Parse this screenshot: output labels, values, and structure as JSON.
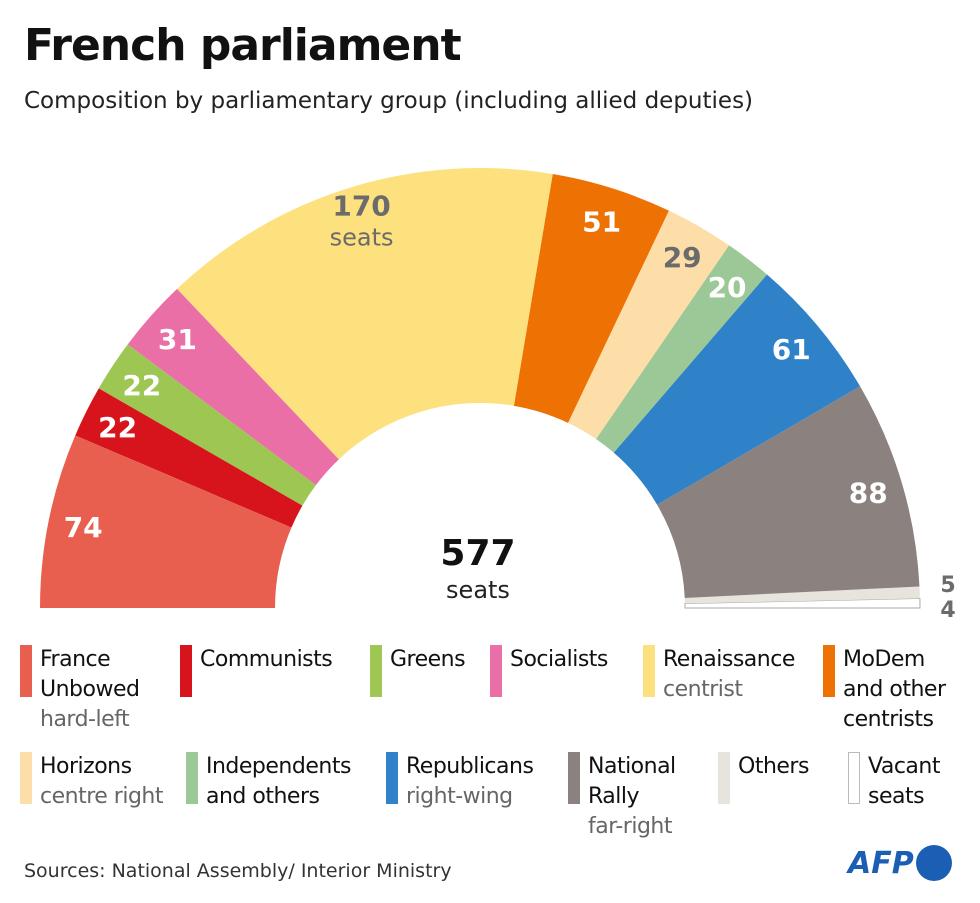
{
  "title": "French parliament",
  "subtitle": "Composition by parliamentary group (including allied deputies)",
  "chart_data": {
    "type": "pie",
    "variant": "hemicycle",
    "total": 577,
    "total_label": "577",
    "total_unit": "seats",
    "series": [
      {
        "name": "France Unbowed",
        "note": "hard-left",
        "value": 74,
        "color": "#e95f4f",
        "label_color": "#ffffff"
      },
      {
        "name": "Communists",
        "note": "",
        "value": 22,
        "color": "#d7141b",
        "label_color": "#ffffff"
      },
      {
        "name": "Greens",
        "note": "",
        "value": 22,
        "color": "#9dc653",
        "label_color": "#ffffff"
      },
      {
        "name": "Socialists",
        "note": "",
        "value": 31,
        "color": "#ea6fa7",
        "label_color": "#ffffff"
      },
      {
        "name": "Renaissance",
        "note": "centrist",
        "value": 170,
        "color": "#fde17f",
        "label_color": "#6b6b6b",
        "unit": "seats"
      },
      {
        "name": "MoDem and other centrists",
        "note": "",
        "value": 51,
        "color": "#ee7203",
        "label_color": "#ffffff"
      },
      {
        "name": "Horizons",
        "note": "centre right",
        "value": 29,
        "color": "#fddea8",
        "label_color": "#6b6b6b"
      },
      {
        "name": "Independents and others",
        "note": "",
        "value": 20,
        "color": "#9cc898",
        "label_color": "#ffffff"
      },
      {
        "name": "Republicans",
        "note": "right-wing",
        "value": 61,
        "color": "#2f81c8",
        "label_color": "#ffffff"
      },
      {
        "name": "National Rally",
        "note": "far-right",
        "value": 88,
        "color": "#8b8280",
        "label_color": "#ffffff"
      },
      {
        "name": "Others",
        "note": "",
        "value": 5,
        "color": "#e7e3dd",
        "label_color": "#6b6b6b"
      },
      {
        "name": "Vacant seats",
        "note": "",
        "value": 4,
        "color": "#ffffff",
        "label_color": "#6b6b6b"
      }
    ]
  },
  "legend": [
    {
      "title": "France Unbowed",
      "note": "hard-left"
    },
    {
      "title": "Communists",
      "note": ""
    },
    {
      "title": "Greens",
      "note": ""
    },
    {
      "title": "Socialists",
      "note": ""
    },
    {
      "title": "Renaissance",
      "note": "centrist"
    },
    {
      "title": "MoDem and other centrists",
      "note": ""
    },
    {
      "title": "Horizons",
      "note": "centre right"
    },
    {
      "title": "Independents and others",
      "note": ""
    },
    {
      "title": "Republicans",
      "note": "right-wing"
    },
    {
      "title": "National Rally",
      "note": "far-right"
    },
    {
      "title": "Others",
      "note": ""
    },
    {
      "title": "Vacant seats",
      "note": ""
    }
  ],
  "source": "Sources: National Assembly/ Interior Ministry",
  "logo": "AFP"
}
